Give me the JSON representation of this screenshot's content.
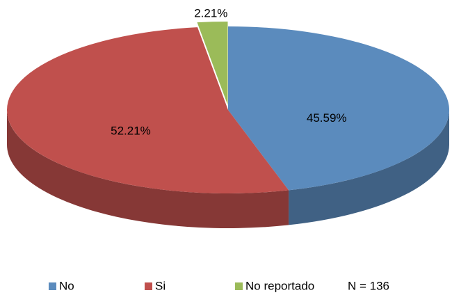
{
  "chart_data": {
    "type": "pie",
    "categories": [
      "No",
      "Si",
      "No reportado"
    ],
    "values": [
      45.59,
      52.21,
      2.21
    ],
    "value_labels": [
      "45.59%",
      "52.21%",
      "2.21%"
    ],
    "colors": [
      "#5b8bbd",
      "#c0504d",
      "#9bbb59"
    ],
    "annotation": "N = 136",
    "legend": "bottom"
  }
}
